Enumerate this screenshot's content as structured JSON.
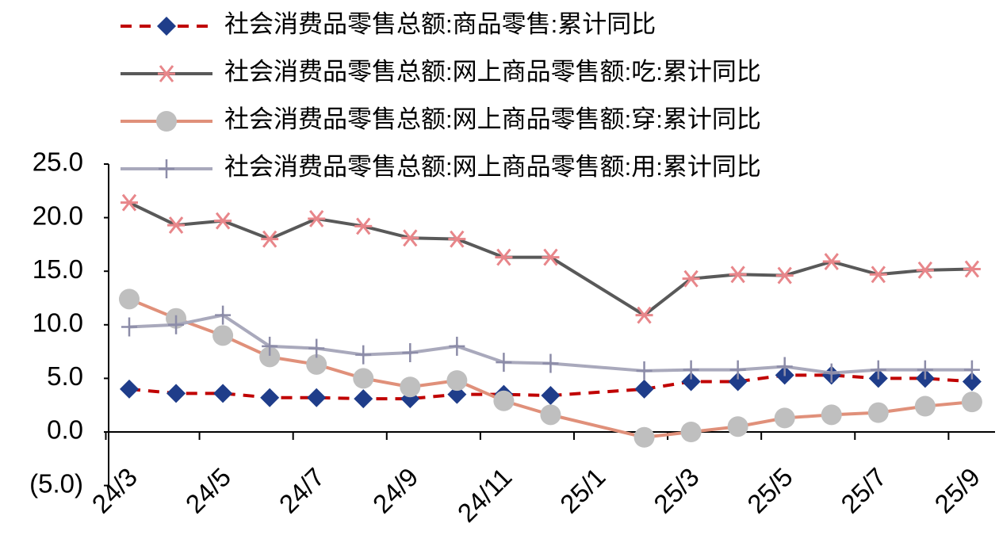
{
  "chart_data": {
    "type": "line",
    "categories": [
      "24/3",
      null,
      "24/5",
      null,
      "24/7",
      null,
      "24/9",
      null,
      "24/11",
      null,
      "25/1",
      null,
      "25/3",
      null,
      "25/5",
      null,
      "25/7",
      null,
      "25/9"
    ],
    "series": [
      {
        "name": "社会消费品零售总额:商品零售:累计同比",
        "color": "#c00000",
        "marker_color": "#1f3d8a",
        "marker": "diamond",
        "dash": true,
        "values": [
          4.0,
          3.6,
          3.6,
          3.2,
          3.2,
          3.1,
          3.1,
          3.5,
          3.5,
          3.4,
          null,
          4.0,
          4.7,
          4.7,
          5.3,
          5.3,
          5.0,
          5.0,
          4.7
        ]
      },
      {
        "name": "社会消费品零售总额:网上商品零售额:吃:累计同比",
        "color": "#595959",
        "marker_color": "#e8868a",
        "marker": "star",
        "values": [
          21.4,
          19.3,
          19.7,
          18.0,
          19.9,
          19.2,
          18.1,
          18.0,
          16.3,
          16.3,
          null,
          10.9,
          14.3,
          14.7,
          14.6,
          15.9,
          14.7,
          15.1,
          15.2
        ]
      },
      {
        "name": "社会消费品零售总额:网上商品零售额:穿:累计同比",
        "color": "#e0907a",
        "marker_color": "#bfbfbf",
        "marker": "circle",
        "values": [
          12.4,
          10.6,
          9.0,
          7.0,
          6.3,
          5.0,
          4.2,
          4.8,
          2.9,
          1.6,
          null,
          -0.5,
          0.0,
          0.5,
          1.3,
          1.6,
          1.8,
          2.4,
          2.8
        ]
      },
      {
        "name": "社会消费品零售总额:网上商品零售额:用:累计同比",
        "color": "#a9a9bc",
        "marker_color": "#8c8ca8",
        "marker": "plus",
        "values": [
          9.8,
          10.0,
          10.9,
          8.0,
          7.8,
          7.2,
          7.4,
          8.0,
          6.5,
          6.4,
          null,
          5.7,
          5.8,
          5.8,
          6.1,
          5.5,
          5.8,
          5.8,
          5.8
        ]
      }
    ],
    "ylim": [
      -5,
      25
    ],
    "yticks": [
      {
        "value": -5,
        "label": "(5.0)",
        "color": "#c00000"
      },
      {
        "value": 0,
        "label": "0.0"
      },
      {
        "value": 5,
        "label": "5.0"
      },
      {
        "value": 10,
        "label": "10.0"
      },
      {
        "value": 15,
        "label": "15.0"
      },
      {
        "value": 20,
        "label": "20.0"
      },
      {
        "value": 25,
        "label": "25.0"
      }
    ],
    "connect_gaps": true
  }
}
